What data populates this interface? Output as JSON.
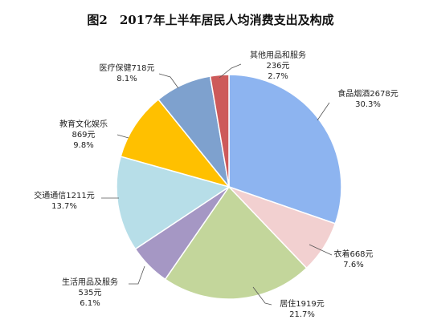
{
  "chart_data": {
    "type": "pie",
    "title": "图2　2017年上半年居民人均消费支出及构成",
    "start": "12 o'clock",
    "direction": "clockwise",
    "slices": [
      {
        "name": "食品烟酒",
        "value": 2678,
        "unit": "元",
        "percent": "30.3%",
        "color": "#8db4f0",
        "label_lines": [
          "食品烟酒2678元",
          "30.3%"
        ]
      },
      {
        "name": "衣着",
        "value": 668,
        "unit": "元",
        "percent": "7.6%",
        "color": "#f2d0d0",
        "label_lines": [
          "衣着668元",
          "7.6%"
        ]
      },
      {
        "name": "居住",
        "value": 1919,
        "unit": "元",
        "percent": "21.7%",
        "color": "#c3d69b",
        "label_lines": [
          "居住1919元",
          "21.7%"
        ]
      },
      {
        "name": "生活用品及服务",
        "value": 535,
        "unit": "元",
        "percent": "6.1%",
        "color": "#a597c4",
        "label_lines": [
          "生活用品及服务",
          "535元",
          "6.1%"
        ]
      },
      {
        "name": "交通通信",
        "value": 1211,
        "unit": "元",
        "percent": "13.7%",
        "color": "#b7dee8",
        "label_lines": [
          "交通通信1211元",
          "13.7%"
        ]
      },
      {
        "name": "教育文化娱乐",
        "value": 869,
        "unit": "元",
        "percent": "9.8%",
        "color": "#ffc000",
        "label_lines": [
          "教育文化娱乐",
          "869元",
          "9.8%"
        ]
      },
      {
        "name": "医疗保健",
        "value": 718,
        "unit": "元",
        "percent": "8.1%",
        "color": "#7ea1ce",
        "label_lines": [
          "医疗保健718元",
          "8.1%"
        ]
      },
      {
        "name": "其他用品和服务",
        "value": 236,
        "unit": "元",
        "percent": "2.7%",
        "color": "#cd5a5a",
        "label_lines": [
          "其他用品和服务",
          "236元",
          "2.7%"
        ]
      }
    ]
  }
}
